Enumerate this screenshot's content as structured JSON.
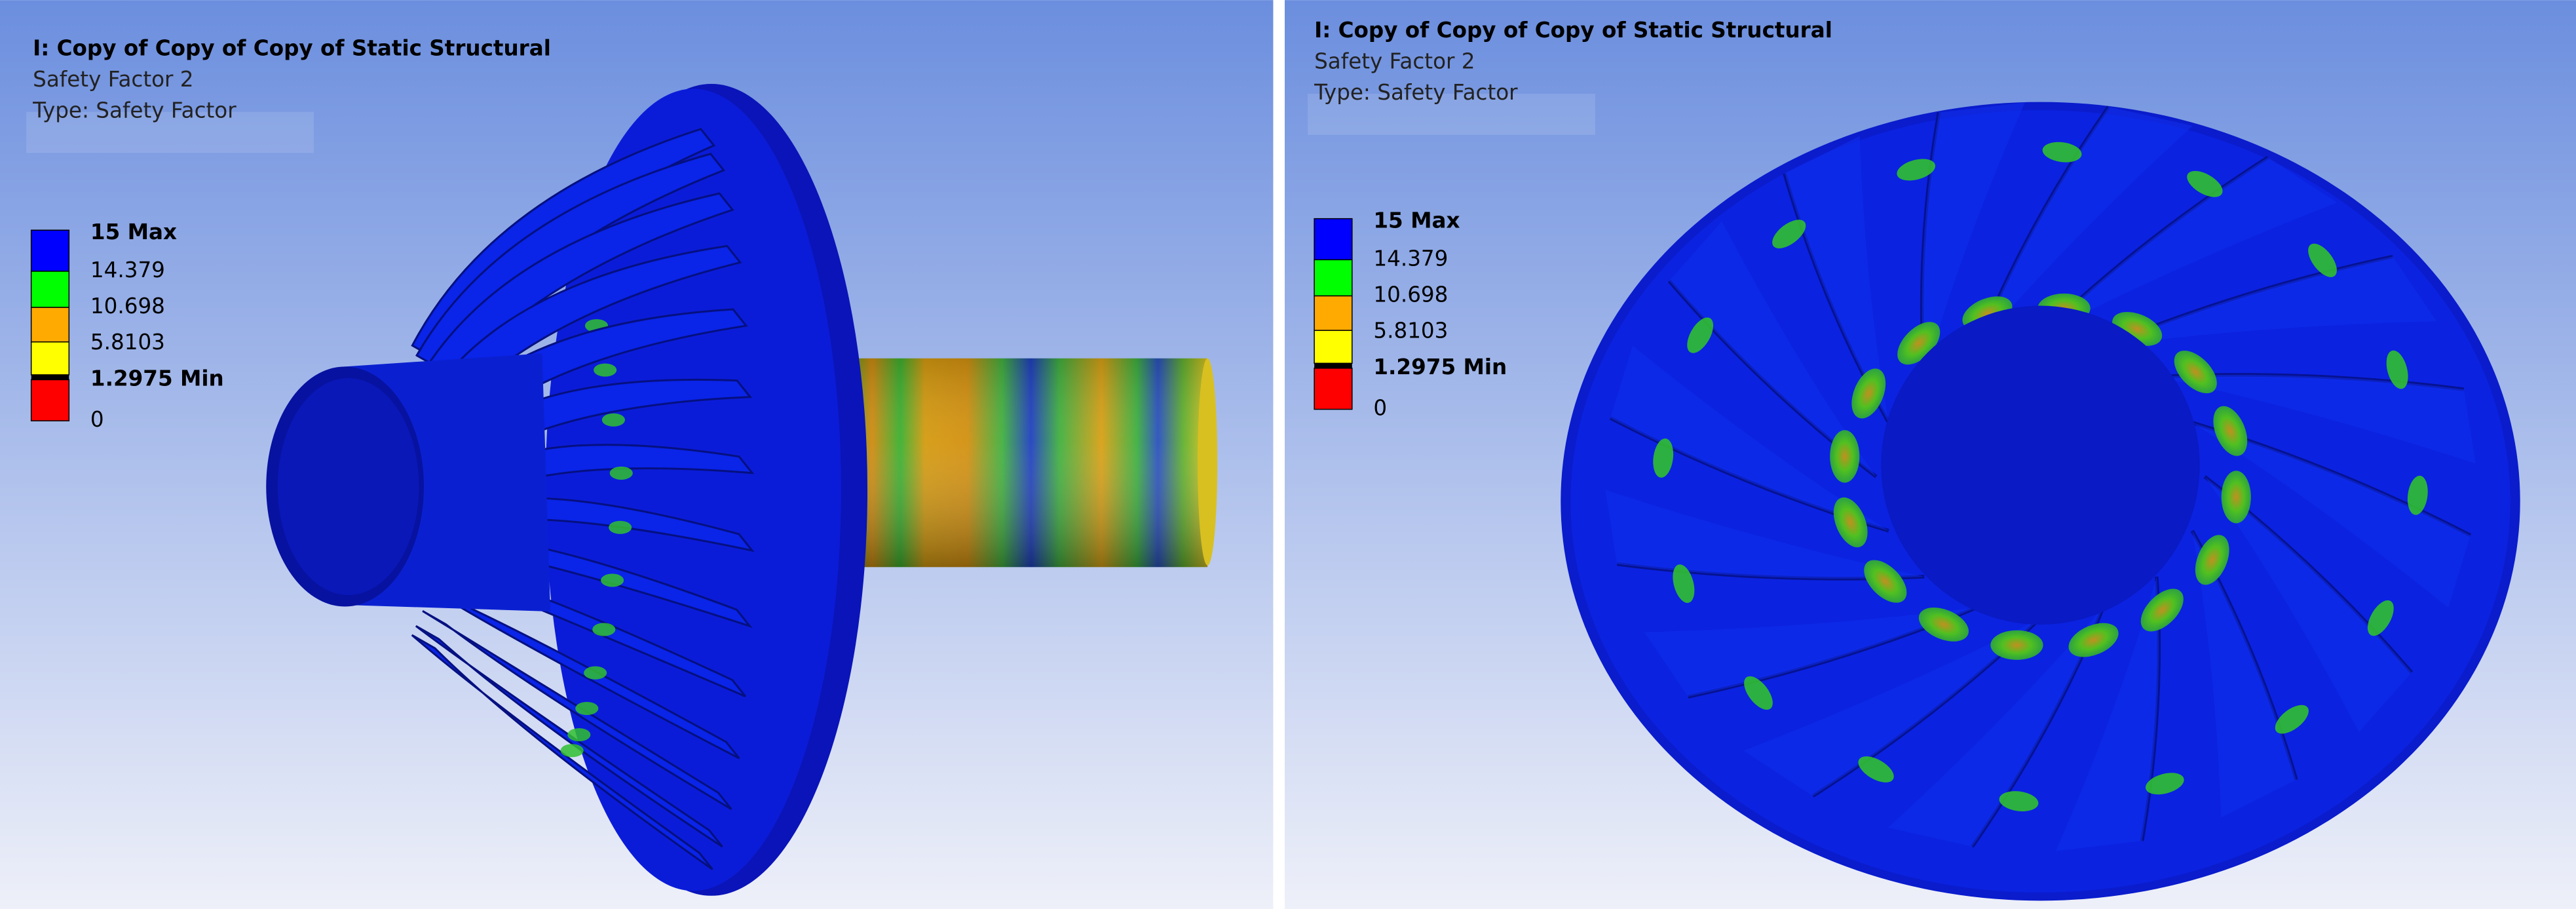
{
  "panels": [
    {
      "title": "I: Copy of Copy of Copy of Static Structural",
      "subtitle": "Safety Factor 2",
      "type_line": "Type: Safety Factor",
      "legend_labels": [
        "15 Max",
        "14.379",
        "10.698",
        "5.8103",
        "1.2975 Min",
        "0"
      ],
      "legend_colors": [
        "#0000ff",
        "#00ff00",
        "#ffaa00",
        "#ffff00",
        "#ff0000"
      ]
    },
    {
      "title": "I: Copy of Copy of Copy of Static Structural",
      "subtitle": "Safety Factor 2",
      "type_line": "Type: Safety Factor",
      "legend_labels": [
        "15 Max",
        "14.379",
        "10.698",
        "5.8103",
        "1.2975 Min",
        "0"
      ],
      "legend_colors": [
        "#0000ff",
        "#00ff00",
        "#ffaa00",
        "#ffff00",
        "#ff0000"
      ]
    }
  ]
}
